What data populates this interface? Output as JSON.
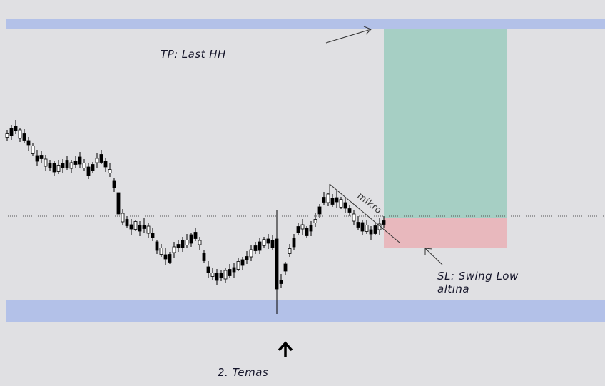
{
  "annotations": {
    "tp": "TP: Last HH",
    "mikro": "mikro",
    "sl_line1": "SL: Swing Low",
    "sl_line2": "altına",
    "touch": "2. Temas"
  }
}
